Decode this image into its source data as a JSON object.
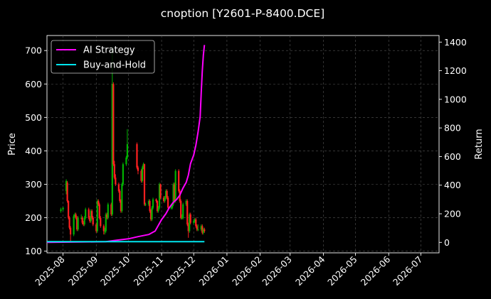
{
  "chart_data": {
    "type": "line",
    "title": "cnoption [Y2601-P-8400.DCE]",
    "xlabel": "",
    "ylabel": "Price",
    "y2label": "Return",
    "grid": true,
    "legend_position": "top-left",
    "x_ticks": [
      "2025-08",
      "2025-09",
      "2025-10",
      "2025-11",
      "2025-12",
      "2026-01",
      "2026-02",
      "2026-03",
      "2026-04",
      "2026-05",
      "2026-06",
      "2026-07"
    ],
    "x_range": [
      "2025-07-17",
      "2026-07-18"
    ],
    "ylim": [
      95,
      745
    ],
    "y_ticks": [
      100,
      200,
      300,
      400,
      500,
      600,
      700
    ],
    "y2lim": [
      -73,
      1446
    ],
    "y2_ticks": [
      0,
      200,
      400,
      600,
      800,
      1000,
      1200,
      1400
    ],
    "colors": {
      "background": "#000000",
      "up": "#00b300",
      "down": "#ff2020",
      "ai_strategy": "#ff00ff",
      "buy_and_hold": "#00e5ee",
      "grid": "#555555"
    },
    "candles": {
      "dates": [
        "2025-07-30",
        "2025-08-01",
        "2025-08-04",
        "2025-08-05",
        "2025-08-06",
        "2025-08-07",
        "2025-08-08",
        "2025-08-11",
        "2025-08-12",
        "2025-08-13",
        "2025-08-14",
        "2025-08-15",
        "2025-08-18",
        "2025-08-19",
        "2025-08-20",
        "2025-08-21",
        "2025-08-22",
        "2025-08-25",
        "2025-08-26",
        "2025-08-27",
        "2025-08-28",
        "2025-08-29",
        "2025-09-01",
        "2025-09-02",
        "2025-09-03",
        "2025-09-04",
        "2025-09-05",
        "2025-09-08",
        "2025-09-09",
        "2025-09-10",
        "2025-09-11",
        "2025-09-12",
        "2025-09-15",
        "2025-09-16",
        "2025-09-17",
        "2025-09-18",
        "2025-09-19",
        "2025-09-22",
        "2025-09-23",
        "2025-09-24",
        "2025-09-25",
        "2025-09-26",
        "2025-09-29",
        "2025-09-30",
        "2025-10-09",
        "2025-10-10",
        "2025-10-13",
        "2025-10-14",
        "2025-10-15",
        "2025-10-16",
        "2025-10-17",
        "2025-10-20",
        "2025-10-21",
        "2025-10-22",
        "2025-10-23",
        "2025-10-24",
        "2025-10-27",
        "2025-10-28",
        "2025-10-29",
        "2025-10-30",
        "2025-10-31",
        "2025-11-03",
        "2025-11-04",
        "2025-11-05",
        "2025-11-06",
        "2025-11-07",
        "2025-11-10",
        "2025-11-11",
        "2025-11-12",
        "2025-11-13",
        "2025-11-14",
        "2025-11-17",
        "2025-11-18",
        "2025-11-19",
        "2025-11-20",
        "2025-11-21",
        "2025-11-24",
        "2025-11-25",
        "2025-11-26",
        "2025-11-27",
        "2025-11-28",
        "2025-12-01",
        "2025-12-02",
        "2025-12-03",
        "2025-12-04",
        "2025-12-05",
        "2025-12-08",
        "2025-12-09",
        "2025-12-10",
        "2025-12-11"
      ],
      "open": [
        220,
        225,
        280,
        305,
        250,
        200,
        170,
        150,
        205,
        210,
        200,
        165,
        200,
        200,
        185,
        180,
        200,
        225,
        200,
        190,
        220,
        200,
        180,
        160,
        250,
        240,
        200,
        175,
        160,
        160,
        210,
        200,
        240,
        210,
        600,
        360,
        320,
        300,
        280,
        250,
        220,
        300,
        360,
        380,
        420,
        350,
        340,
        310,
        350,
        360,
        240,
        240,
        250,
        220,
        195,
        230,
        255,
        250,
        220,
        230,
        300,
        260,
        250,
        260,
        280,
        260,
        230,
        230,
        240,
        300,
        250,
        340,
        280,
        250,
        200,
        200,
        240,
        250,
        180,
        160,
        210,
        185,
        190,
        195,
        175,
        165,
        165,
        175,
        155,
        165
      ],
      "close": [
        225,
        230,
        310,
        250,
        200,
        170,
        150,
        205,
        210,
        200,
        165,
        200,
        200,
        185,
        180,
        200,
        225,
        200,
        190,
        220,
        200,
        180,
        160,
        250,
        240,
        200,
        175,
        160,
        160,
        210,
        200,
        240,
        210,
        600,
        360,
        320,
        300,
        280,
        250,
        220,
        300,
        360,
        380,
        420,
        350,
        340,
        310,
        350,
        360,
        240,
        240,
        250,
        220,
        195,
        230,
        255,
        250,
        220,
        230,
        300,
        260,
        250,
        260,
        280,
        260,
        230,
        230,
        240,
        300,
        250,
        340,
        280,
        250,
        200,
        200,
        240,
        250,
        180,
        160,
        210,
        185,
        190,
        195,
        175,
        165,
        165,
        175,
        155,
        165,
        160
      ],
      "high": [
        230,
        232,
        315,
        310,
        252,
        205,
        175,
        210,
        215,
        215,
        205,
        205,
        210,
        205,
        190,
        205,
        230,
        230,
        205,
        225,
        225,
        205,
        185,
        255,
        255,
        245,
        205,
        180,
        170,
        215,
        215,
        245,
        245,
        710,
        605,
        370,
        330,
        305,
        285,
        255,
        305,
        365,
        385,
        465,
        425,
        355,
        345,
        355,
        365,
        362,
        245,
        255,
        255,
        225,
        235,
        260,
        258,
        252,
        235,
        305,
        302,
        265,
        265,
        285,
        285,
        265,
        240,
        245,
        305,
        305,
        345,
        345,
        285,
        255,
        210,
        245,
        255,
        255,
        185,
        215,
        215,
        195,
        200,
        200,
        180,
        180,
        180,
        180,
        170,
        170
      ],
      "low": [
        215,
        220,
        270,
        245,
        195,
        165,
        130,
        145,
        200,
        195,
        160,
        160,
        195,
        180,
        175,
        175,
        195,
        195,
        185,
        185,
        195,
        175,
        155,
        155,
        235,
        195,
        170,
        150,
        150,
        155,
        195,
        195,
        205,
        205,
        355,
        315,
        295,
        275,
        245,
        215,
        215,
        295,
        355,
        375,
        345,
        330,
        305,
        305,
        345,
        235,
        235,
        235,
        215,
        190,
        190,
        225,
        245,
        215,
        215,
        225,
        255,
        245,
        245,
        255,
        255,
        225,
        225,
        225,
        235,
        245,
        245,
        275,
        245,
        195,
        195,
        195,
        235,
        175,
        140,
        155,
        180,
        180,
        185,
        170,
        160,
        160,
        160,
        150,
        150,
        155
      ]
    },
    "series": [
      {
        "name": "AI Strategy",
        "x": [
          "2025-07-17",
          "2025-09-10",
          "2025-09-20",
          "2025-10-01",
          "2025-10-10",
          "2025-10-20",
          "2025-10-26",
          "2025-10-29",
          "2025-11-01",
          "2025-11-05",
          "2025-11-08",
          "2025-11-12",
          "2025-11-15",
          "2025-11-18",
          "2025-11-21",
          "2025-11-24",
          "2025-11-26",
          "2025-11-28",
          "2025-12-01",
          "2025-12-03",
          "2025-12-05",
          "2025-12-07",
          "2025-12-08",
          "2025-12-09",
          "2025-12-10",
          "2025-12-11"
        ],
        "values": [
          0,
          5,
          15,
          25,
          40,
          55,
          80,
          120,
          160,
          200,
          240,
          280,
          300,
          330,
          380,
          420,
          470,
          550,
          610,
          680,
          770,
          880,
          1050,
          1200,
          1310,
          1380
        ]
      },
      {
        "name": "Buy-and-Hold",
        "x": [
          "2025-07-17",
          "2025-12-11"
        ],
        "values": [
          5,
          5
        ]
      }
    ]
  }
}
